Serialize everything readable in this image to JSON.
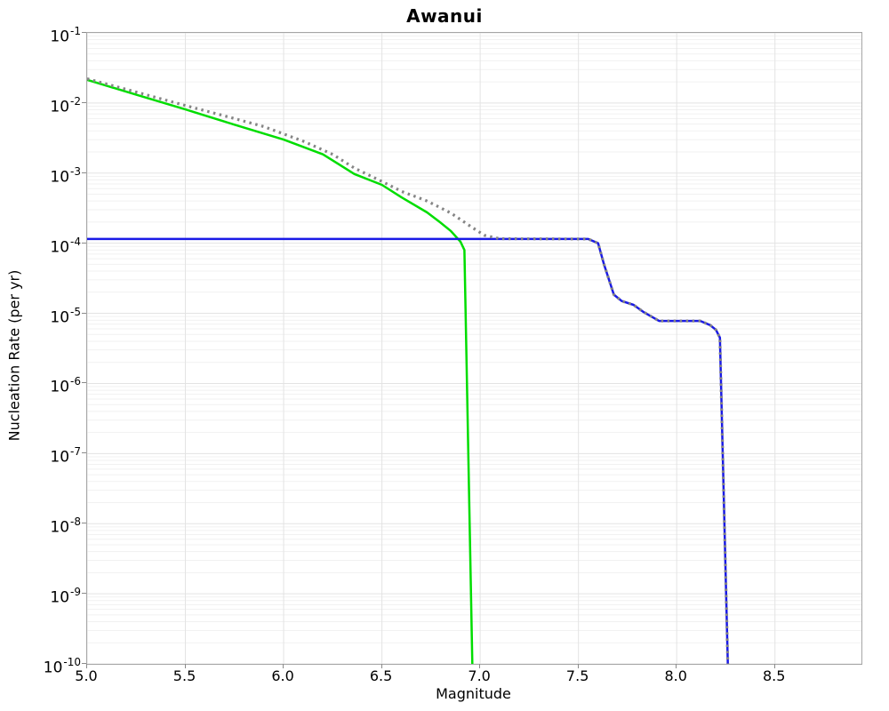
{
  "chart": {
    "title": "Awanui",
    "xlabel": "Magnitude",
    "ylabel": "Nucleation Rate (per yr)"
  },
  "chart_data": {
    "type": "line",
    "title": "Awanui",
    "xlabel": "Magnitude",
    "ylabel": "Nucleation Rate (per yr)",
    "x_range": [
      5.0,
      8.94
    ],
    "y_range_log10": [
      -10,
      -1
    ],
    "x_ticks": [
      5.0,
      5.5,
      6.0,
      6.5,
      7.0,
      7.5,
      8.0,
      8.5
    ],
    "x_tick_labels": [
      "5.0",
      "5.5",
      "6.0",
      "6.5",
      "7.0",
      "7.5",
      "8.0",
      "8.5"
    ],
    "y_ticks": [
      {
        "base": "10",
        "exp": "-1"
      },
      {
        "base": "10",
        "exp": "-2"
      },
      {
        "base": "10",
        "exp": "-3"
      },
      {
        "base": "10",
        "exp": "-4"
      },
      {
        "base": "10",
        "exp": "-5"
      },
      {
        "base": "10",
        "exp": "-6"
      },
      {
        "base": "10",
        "exp": "-7"
      },
      {
        "base": "10",
        "exp": "-8"
      },
      {
        "base": "10",
        "exp": "-9"
      },
      {
        "base": "10",
        "exp": "-10"
      }
    ],
    "grid": true,
    "legend": "none",
    "colors": {
      "grid_minor": "#f1f1f1",
      "grid_major": "#e3e3e3",
      "frame": "#a6a6a6",
      "tick": "#8a8a8a",
      "green_line": "#00dd00",
      "blue_line": "#1a1ae6",
      "gray_dotted": "#858585"
    },
    "series": [
      {
        "name": "green-solid-curve",
        "color": "#00dd00",
        "style": "solid",
        "width": 2.5,
        "points": [
          [
            5.0,
            0.0214
          ],
          [
            5.25,
            0.0131
          ],
          [
            5.5,
            0.0081
          ],
          [
            5.75,
            0.0049
          ],
          [
            6.0,
            0.003
          ],
          [
            6.2,
            0.00185
          ],
          [
            6.36,
            0.00097
          ],
          [
            6.5,
            0.00068
          ],
          [
            6.6,
            0.00045
          ],
          [
            6.73,
            0.000275
          ],
          [
            6.8,
            0.000195
          ],
          [
            6.85,
            0.00015
          ],
          [
            6.9,
            0.000105
          ],
          [
            6.92,
            8e-05
          ],
          [
            6.96,
            1e-10
          ]
        ]
      },
      {
        "name": "blue-solid-curve",
        "color": "#1a1ae6",
        "style": "solid",
        "width": 2.5,
        "points": [
          [
            5.0,
            0.000115
          ],
          [
            7.55,
            0.000115
          ],
          [
            7.6,
            0.0001
          ],
          [
            7.63,
            5e-05
          ],
          [
            7.68,
            1.85e-05
          ],
          [
            7.72,
            1.5e-05
          ],
          [
            7.78,
            1.32e-05
          ],
          [
            7.83,
            1.05e-05
          ],
          [
            7.91,
            7.8e-06
          ],
          [
            8.12,
            7.8e-06
          ],
          [
            8.17,
            6.8e-06
          ],
          [
            8.2,
            5.8e-06
          ],
          [
            8.22,
            4.5e-06
          ],
          [
            8.26,
            1e-10
          ]
        ]
      },
      {
        "name": "gray-dotted-curve",
        "color": "#858585",
        "style": "dotted",
        "width": 3.2,
        "points": [
          [
            5.0,
            0.0222
          ],
          [
            5.25,
            0.0143
          ],
          [
            5.5,
            0.0092
          ],
          [
            5.75,
            0.006
          ],
          [
            5.9,
            0.0046
          ],
          [
            6.1,
            0.00285
          ],
          [
            6.25,
            0.00185
          ],
          [
            6.36,
            0.00118
          ],
          [
            6.5,
            0.00076
          ],
          [
            6.6,
            0.00055
          ],
          [
            6.73,
            0.0004
          ],
          [
            6.85,
            0.00027
          ],
          [
            6.95,
            0.000175
          ],
          [
            7.02,
            0.00013
          ],
          [
            7.1,
            0.000116
          ],
          [
            7.55,
            0.000115
          ],
          [
            7.6,
            0.0001
          ],
          [
            7.63,
            5e-05
          ],
          [
            7.68,
            1.85e-05
          ],
          [
            7.72,
            1.5e-05
          ],
          [
            7.78,
            1.32e-05
          ],
          [
            7.83,
            1.05e-05
          ],
          [
            7.91,
            7.8e-06
          ],
          [
            8.12,
            7.8e-06
          ],
          [
            8.17,
            6.8e-06
          ],
          [
            8.2,
            5.8e-06
          ],
          [
            8.22,
            4.5e-06
          ],
          [
            8.26,
            1e-10
          ]
        ]
      }
    ]
  }
}
